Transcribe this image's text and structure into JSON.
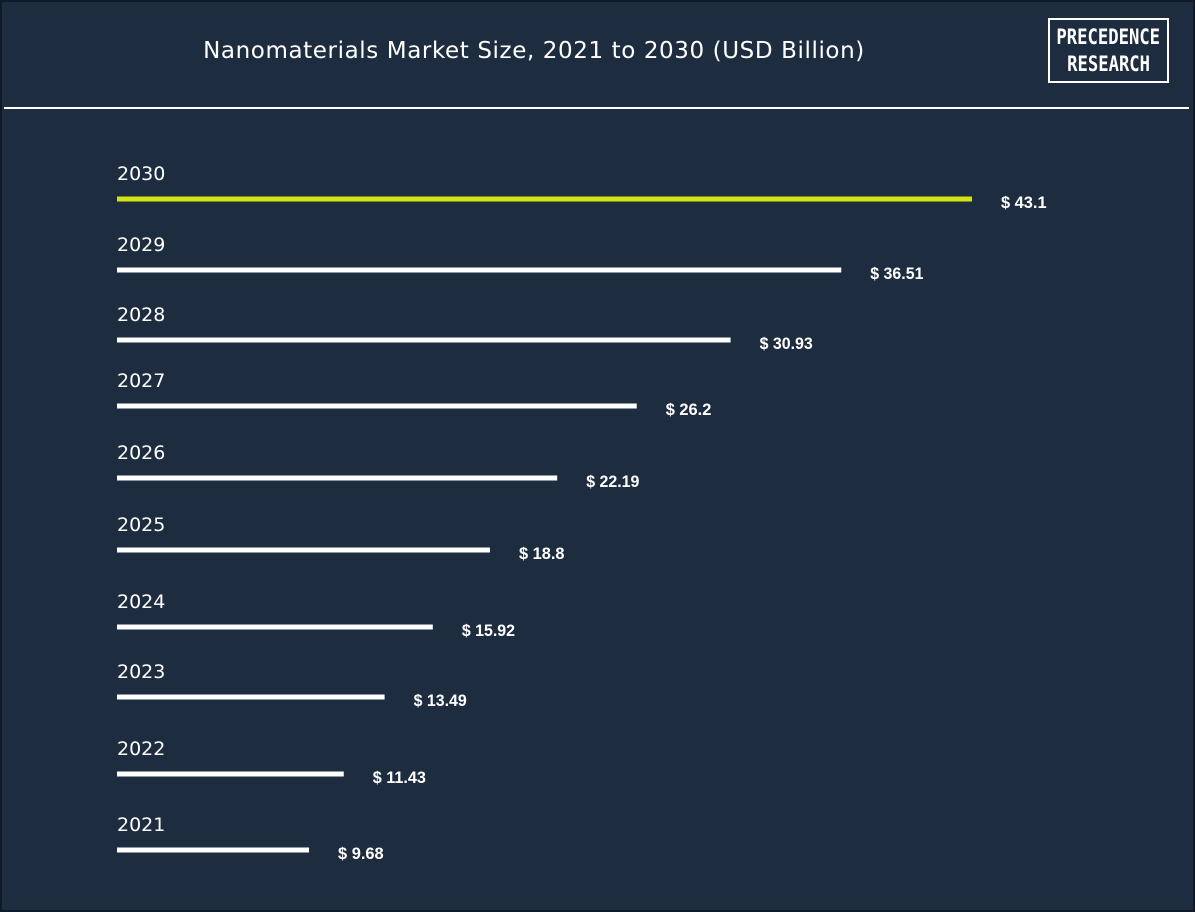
{
  "title": "Nanomaterials Market Size, 2021 to 2030 (USD Billion)",
  "logo": {
    "line1": "PRECEDENCE",
    "line2": "RESEARCH"
  },
  "colors": {
    "background": "#1d2d3f",
    "bar": "#ffffff",
    "highlight_bar": "#d4e411",
    "text": "#ffffff"
  },
  "chart_data": {
    "type": "bar",
    "orientation": "horizontal",
    "title": "Nanomaterials Market Size, 2021 to 2030 (USD Billion)",
    "categories": [
      "2030",
      "2029",
      "2028",
      "2027",
      "2026",
      "2025",
      "2024",
      "2023",
      "2022",
      "2021"
    ],
    "values": [
      43.1,
      36.51,
      30.93,
      26.2,
      22.19,
      18.8,
      15.92,
      13.49,
      11.43,
      9.68
    ],
    "value_labels": [
      "$ 43.1",
      "$ 36.51",
      "$ 30.93",
      "$ 26.2",
      "$ 22.19",
      "$ 18.8",
      "$ 15.92",
      "$ 13.49",
      "$ 11.43",
      "$ 9.68"
    ],
    "highlight_category": "2030",
    "grid": false,
    "legend": "none"
  }
}
